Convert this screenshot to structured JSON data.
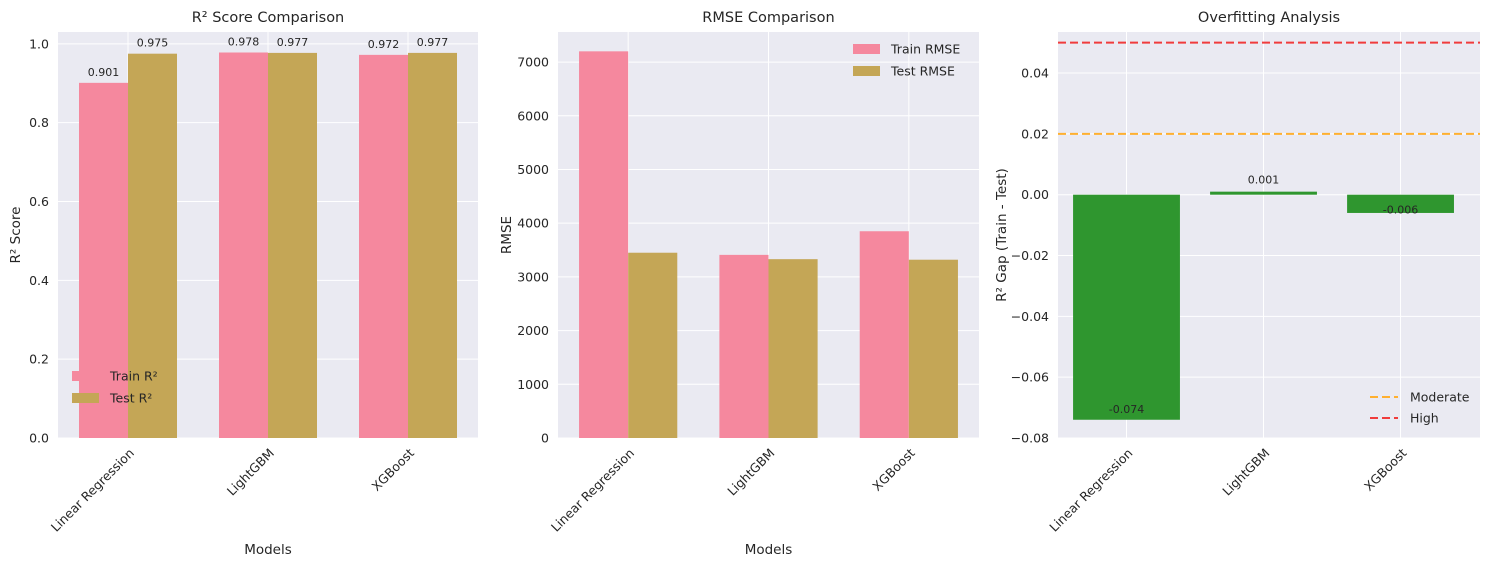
{
  "chart_data": [
    {
      "type": "bar",
      "title": "R² Score Comparison",
      "xlabel": "Models",
      "ylabel": "R² Score",
      "categories": [
        "Linear Regression",
        "LightGBM",
        "XGBoost"
      ],
      "series": [
        {
          "name": "Train R²",
          "values": [
            0.901,
            0.978,
            0.972
          ],
          "color": "#f5889e"
        },
        {
          "name": "Test R²",
          "values": [
            0.975,
            0.977,
            0.977
          ],
          "color": "#c4a656"
        }
      ],
      "data_labels": [
        "0.901",
        "0.975",
        "0.978",
        "0.977",
        "0.972",
        "0.977"
      ],
      "ylim": [
        0,
        1.03
      ],
      "yticks": [
        0.0,
        0.2,
        0.4,
        0.6,
        0.8,
        1.0
      ],
      "ytick_labels": [
        "0.0",
        "0.2",
        "0.4",
        "0.6",
        "0.8",
        "1.0"
      ],
      "legend_position": "lower-left",
      "grid": true
    },
    {
      "type": "bar",
      "title": "RMSE Comparison",
      "xlabel": "Models",
      "ylabel": "RMSE",
      "categories": [
        "Linear Regression",
        "LightGBM",
        "XGBoost"
      ],
      "series": [
        {
          "name": "Train RMSE",
          "values": [
            7200,
            3410,
            3850
          ],
          "color": "#f5889e"
        },
        {
          "name": "Test RMSE",
          "values": [
            3450,
            3330,
            3320
          ],
          "color": "#c4a656"
        }
      ],
      "ylim": [
        0,
        7560
      ],
      "yticks": [
        0,
        1000,
        2000,
        3000,
        4000,
        5000,
        6000,
        7000
      ],
      "ytick_labels": [
        "0",
        "1000",
        "2000",
        "3000",
        "4000",
        "5000",
        "6000",
        "7000"
      ],
      "legend_position": "upper-right",
      "grid": true
    },
    {
      "type": "bar",
      "title": "Overfitting Analysis",
      "xlabel": "",
      "ylabel": "R² Gap (Train - Test)",
      "categories": [
        "Linear Regression",
        "LightGBM",
        "XGBoost"
      ],
      "values": [
        -0.074,
        0.001,
        -0.006
      ],
      "bar_color": "#2f962f",
      "data_labels": [
        "-0.074",
        "0.001",
        "-0.006"
      ],
      "ylim": [
        -0.08,
        0.0535
      ],
      "yticks": [
        -0.08,
        -0.06,
        -0.04,
        -0.02,
        0.0,
        0.02,
        0.04
      ],
      "ytick_labels": [
        "−0.08",
        "−0.06",
        "−0.04",
        "−0.02",
        "0.00",
        "0.02",
        "0.04"
      ],
      "reference_lines": [
        {
          "name": "Moderate",
          "value": 0.02,
          "color": "#ffb030"
        },
        {
          "name": "High",
          "value": 0.05,
          "color": "#f03c3c"
        }
      ],
      "legend_position": "lower-right",
      "grid": true
    }
  ]
}
